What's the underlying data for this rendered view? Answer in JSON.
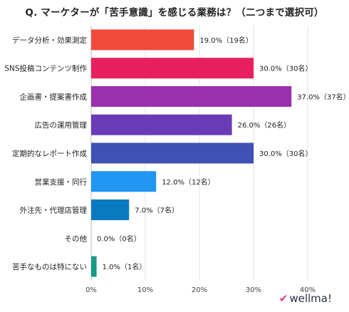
{
  "brand": {
    "logo_text": "wellma!",
    "logo_icon": "w-check-icon"
  },
  "chart_data": {
    "type": "bar",
    "orientation": "horizontal",
    "title": "Q. マーケターが「苦手意識」を感じる業務は？（二つまで選択可）",
    "categories": [
      "データ分析・効果測定",
      "SNS投稿コンテンツ制作",
      "企画書・提案書作成",
      "広告の運用管理",
      "定期的なレポート作成",
      "営業支援・同行",
      "外注先・代理店管理",
      "その他",
      "苦手なものは特にない"
    ],
    "values": [
      19.0,
      30.0,
      37.0,
      26.0,
      30.0,
      12.0,
      7.0,
      0.0,
      1.0
    ],
    "data_labels": [
      "19.0%（19名）",
      "30.0%（30名）",
      "37.0%（37名）",
      "26.0%（26名）",
      "30.0%（30名）",
      "12.0%（12名）",
      "7.0%（7名）",
      "0.0%（0名）",
      "1.0%（1名）"
    ],
    "colors": [
      "#f04a3c",
      "#e9205f",
      "#9b2fae",
      "#6a3bb6",
      "#3f51b5",
      "#2196f3",
      "#0b79c2",
      "#1aa8b8",
      "#159a86"
    ],
    "xlim": [
      0,
      40
    ],
    "xticks": [
      0,
      10,
      20,
      30,
      40
    ],
    "xtick_labels": [
      "0%",
      "10%",
      "20%",
      "30%",
      "40%"
    ],
    "grid": true
  }
}
